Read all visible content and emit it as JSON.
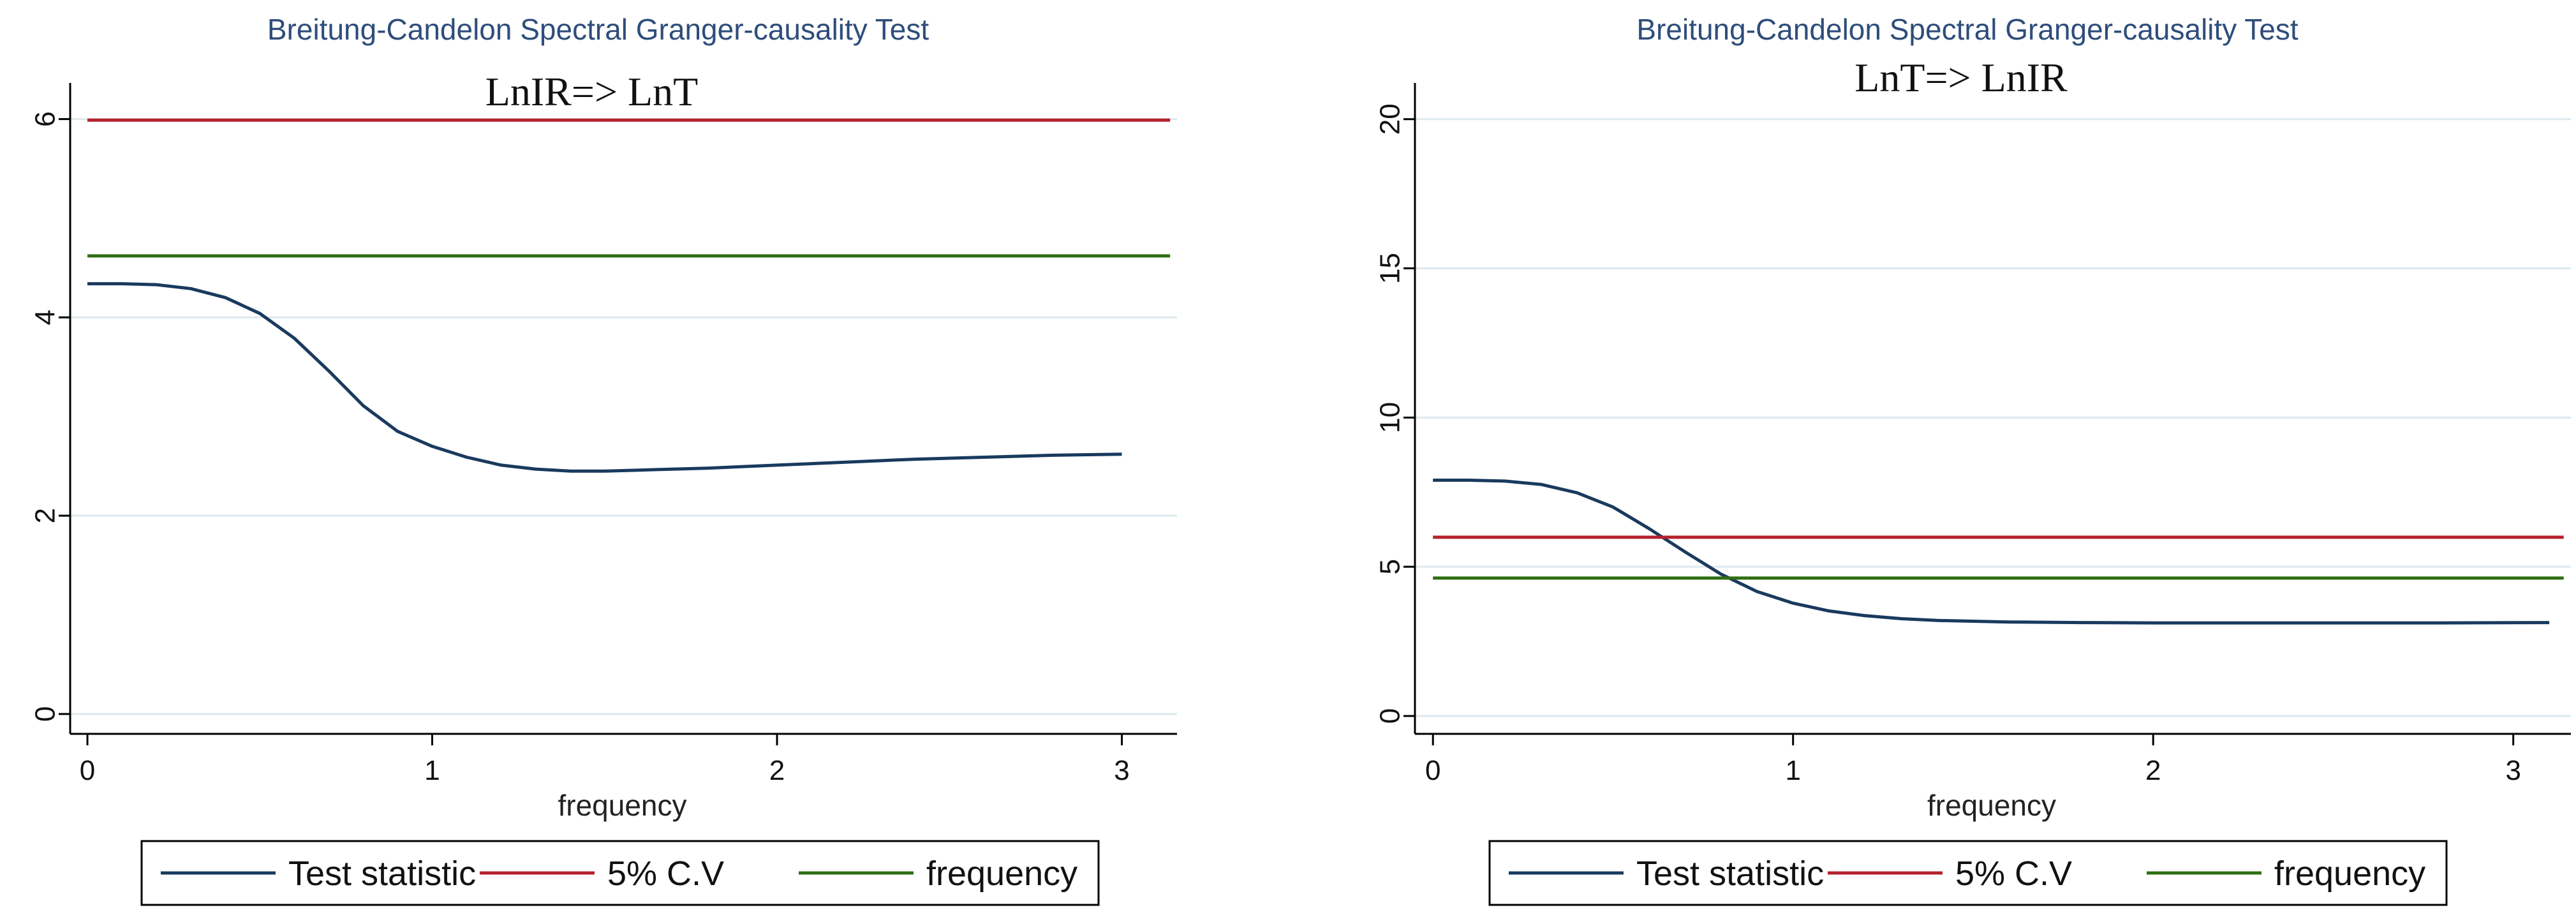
{
  "chart_data": [
    {
      "type": "line",
      "suptitle": "Breitung-Candelon Spectral Granger-causality Test",
      "title": "LnIR=> LnT",
      "xlabel": "frequency",
      "ylabel": "",
      "xlim": [
        -0.05,
        3.16
      ],
      "ylim": [
        -0.2,
        6.3
      ],
      "xticks": [
        0,
        1,
        2,
        3
      ],
      "yticks": [
        0,
        2,
        4,
        6
      ],
      "grid": true,
      "series": [
        {
          "name": "Test statistic",
          "color": "#1a3a5e",
          "x": [
            0,
            0.1,
            0.2,
            0.3,
            0.4,
            0.5,
            0.6,
            0.7,
            0.8,
            0.9,
            1.0,
            1.1,
            1.2,
            1.3,
            1.4,
            1.5,
            1.6,
            1.8,
            2.0,
            2.2,
            2.4,
            2.6,
            2.8,
            3.0
          ],
          "values": [
            4.34,
            4.34,
            4.33,
            4.29,
            4.2,
            4.04,
            3.79,
            3.46,
            3.11,
            2.85,
            2.7,
            2.59,
            2.51,
            2.47,
            2.45,
            2.45,
            2.46,
            2.48,
            2.51,
            2.54,
            2.57,
            2.59,
            2.61,
            2.62
          ]
        },
        {
          "name": "5% C.V",
          "color": "#b5202e",
          "x": [
            0,
            3.14
          ],
          "values": [
            5.99,
            5.99
          ]
        },
        {
          "name": "frequency",
          "color": "#2e6e12",
          "x": [
            0,
            3.14
          ],
          "values": [
            4.62,
            4.62
          ]
        }
      ]
    },
    {
      "type": "line",
      "suptitle": "Breitung-Candelon Spectral Granger-causality Test",
      "title": "LnT=> LnIR",
      "xlabel": "frequency",
      "ylabel": "",
      "xlim": [
        -0.05,
        3.16
      ],
      "ylim": [
        -0.6,
        21.0
      ],
      "xticks": [
        0,
        1,
        2,
        3
      ],
      "yticks": [
        0,
        5,
        10,
        15,
        20
      ],
      "grid": true,
      "series": [
        {
          "name": "Test statistic",
          "color": "#1a3a5e",
          "x": [
            0,
            0.1,
            0.2,
            0.3,
            0.4,
            0.5,
            0.6,
            0.7,
            0.8,
            0.9,
            1.0,
            1.1,
            1.2,
            1.3,
            1.4,
            1.6,
            1.8,
            2.0,
            2.4,
            2.8,
            3.1
          ],
          "values": [
            7.9,
            7.9,
            7.87,
            7.76,
            7.48,
            7.0,
            6.28,
            5.5,
            4.75,
            4.17,
            3.78,
            3.52,
            3.36,
            3.26,
            3.2,
            3.15,
            3.13,
            3.12,
            3.12,
            3.12,
            3.13
          ]
        },
        {
          "name": "5% C.V",
          "color": "#b5202e",
          "x": [
            0,
            3.14
          ],
          "values": [
            5.99,
            5.99
          ]
        },
        {
          "name": "frequency",
          "color": "#2e6e12",
          "x": [
            0,
            3.14
          ],
          "values": [
            4.62,
            4.62
          ]
        }
      ]
    }
  ]
}
